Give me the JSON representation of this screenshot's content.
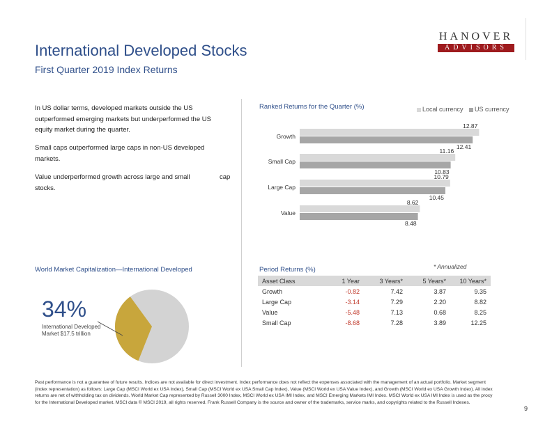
{
  "header": {
    "title": "International Developed Stocks",
    "subtitle": "First Quarter 2019 Index Returns",
    "logo_line1": "HANOVER",
    "logo_line2": "ADVISORS"
  },
  "bullets": [
    "In US dollar terms, developed markets outside the US outperformed emerging markets but underperformed the US equity market during the quarter.",
    "Small caps outperformed large caps in non-US developed markets.",
    "Value underperformed growth across large and small",
    "stocks."
  ],
  "bullet_overflow_word": "cap",
  "colors": {
    "title_blue": "#2f4f8a",
    "local_bar": "#d9d9d9",
    "us_bar": "#a6a6a6",
    "pie_main": "#d3d3d3",
    "pie_slice": "#c8a63c",
    "logo_red": "#9e1b1e"
  },
  "chart_data": {
    "type": "bar",
    "orientation": "horizontal",
    "title": "Ranked Returns for the Quarter (%)",
    "categories": [
      "Growth",
      "Small Cap",
      "Large Cap",
      "Value"
    ],
    "series": [
      {
        "name": "Local currency",
        "values": [
          12.87,
          11.16,
          10.79,
          8.62
        ]
      },
      {
        "name": "US currency",
        "values": [
          12.41,
          10.83,
          10.45,
          8.48
        ]
      }
    ],
    "value_labels": [
      [
        "12.87",
        "11.16",
        "10.79",
        "8.62"
      ],
      [
        "12.41",
        "10.83",
        "10.45",
        "8.48"
      ]
    ],
    "xlim": [
      0,
      13
    ]
  },
  "legend": {
    "local": "Local currency",
    "us": "US currency"
  },
  "market_cap": {
    "title": "World Market Capitalization—International Developed",
    "percent": 34,
    "percent_label": "34%",
    "label": "International Developed Market $17.5 trillion"
  },
  "period_returns": {
    "title": "Period Returns (%)",
    "note": "* Annualized",
    "headers": [
      "Asset Class",
      "1 Year",
      "3 Years*",
      "5 Years*",
      "10 Years*"
    ],
    "rows": [
      [
        "Growth",
        "-0.82",
        "7.42",
        "3.87",
        "9.35"
      ],
      [
        "Large Cap",
        "-3.14",
        "7.29",
        "2.20",
        "8.82"
      ],
      [
        "Value",
        "-5.48",
        "7.13",
        "0.68",
        "8.25"
      ],
      [
        "Small Cap",
        "-8.68",
        "7.28",
        "3.89",
        "12.25"
      ]
    ]
  },
  "footnote": "Past performance is not a guarantee of future results. Indices are not available for direct investment. Index performance does not reflect the expenses associated with the management of an actual portfolio. Market segment (index representation) as follows: Large Cap (MSCI World ex USA Index), Small Cap (MSCI World ex USA Small Cap Index), Value (MSCI World ex USA Value Index), and Growth (MSCI World ex USA Growth Index). All index returns are net of withholding tax on dividends. World Market Cap represented by Russell 3000 Index, MSCI World ex USA IMI Index, and MSCI Emerging Markets IMI Index. MSCI World ex USA IMI Index is used as the proxy for the International Developed market. MSCI data © MSCI 2019, all rights reserved. Frank Russell Company is the source and owner of the trademarks, service marks, and copyrights related to the Russell Indexes.",
  "page_number": "9"
}
